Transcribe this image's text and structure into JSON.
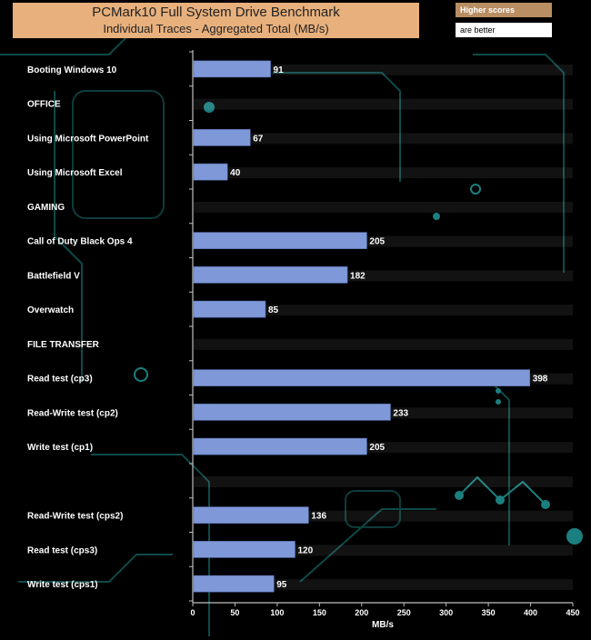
{
  "header": {
    "title": "PCMark10 Full System Drive Benchmark",
    "subtitle": "Individual Traces - Aggregated Total (MB/s)"
  },
  "note": {
    "line1": "Higher scores",
    "line2": "are better"
  },
  "chart_data": {
    "type": "bar",
    "orientation": "horizontal",
    "title": "PCMark10 Full System Drive Benchmark",
    "subtitle": "Individual Traces - Aggregated Total (MB/s)",
    "xlabel": "MB/s",
    "ylabel": "",
    "xlim": [
      0,
      450
    ],
    "xticks": [
      0,
      50,
      100,
      150,
      200,
      250,
      300,
      350,
      400,
      450
    ],
    "categories": [
      "Booting Windows 10",
      "OFFICE",
      "Using Microsoft PowerPoint",
      "Using Microsoft Excel",
      "GAMING",
      "Call of Duty Black Ops 4",
      "Battlefield V",
      "Overwatch",
      "FILE TRANSFER",
      "Read test (cp3)",
      "Read-Write test (cp2)",
      "Write test (cp1)",
      "",
      "Read-Write test (cps2)",
      "Read test (cps3)",
      "Write test (cps1)"
    ],
    "values": [
      91,
      null,
      67,
      40,
      null,
      205,
      182,
      85,
      null,
      398,
      233,
      205,
      null,
      136,
      120,
      95
    ],
    "bar_color": "#7f98d8",
    "legend": "none"
  }
}
